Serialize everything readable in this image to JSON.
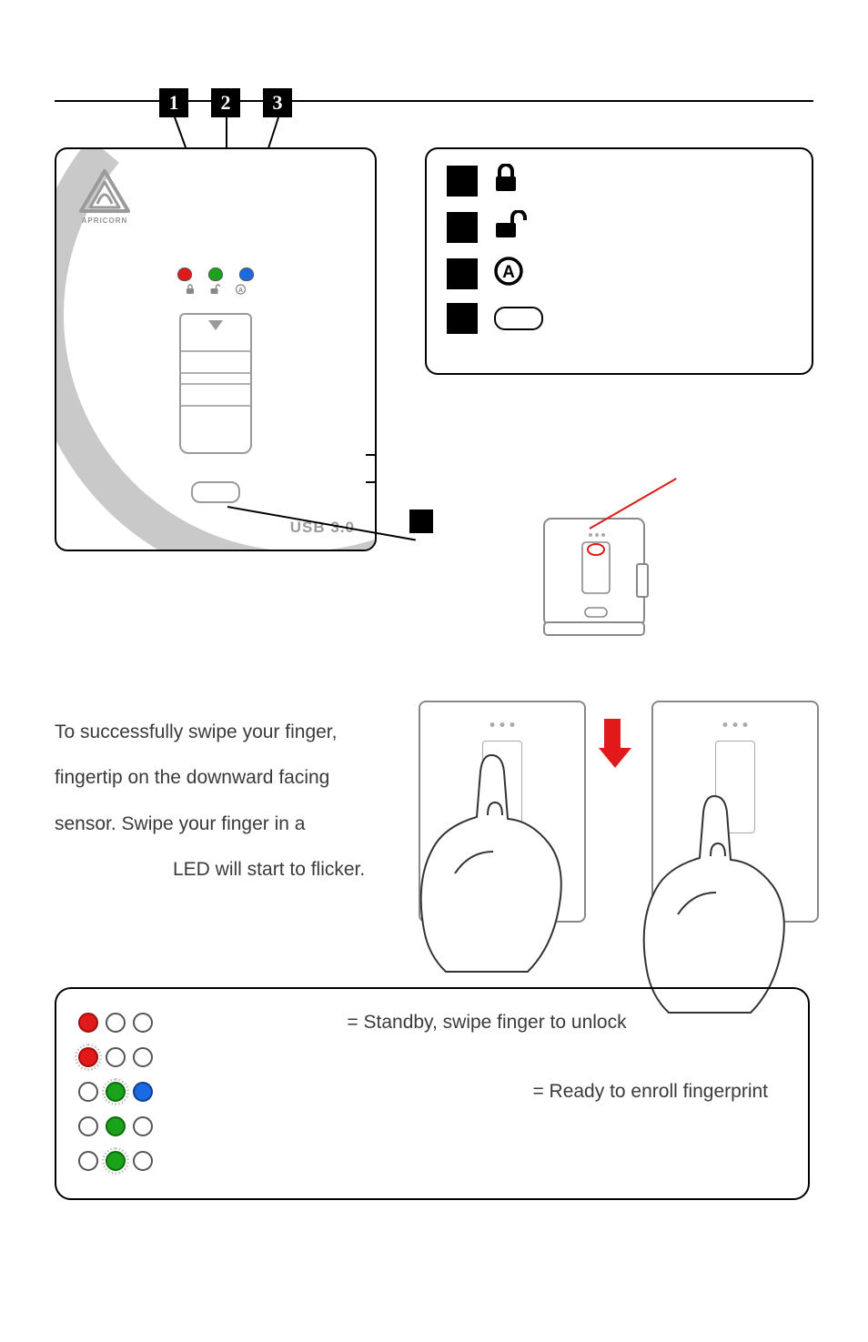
{
  "logo_text": "APRICORN",
  "usb_label": "USB 3.0",
  "callouts": [
    "1",
    "2",
    "3"
  ],
  "device_leds": [
    {
      "color": "red"
    },
    {
      "color": "green"
    },
    {
      "color": "blue"
    }
  ],
  "instructions": {
    "l1": "To successfully swipe your finger,",
    "l2": "fingertip on the downward facing",
    "l3": "sensor. Swipe your finger in a",
    "l4": "LED will start to flicker."
  },
  "led_states": [
    {
      "pattern": [
        {
          "filled": true,
          "glow": false,
          "color": "red"
        },
        {
          "filled": false
        },
        {
          "filled": false
        }
      ],
      "text": "= Standby, swipe finger to unlock",
      "align": "center"
    },
    {
      "pattern": [
        {
          "filled": true,
          "glow": true,
          "color": "red"
        },
        {
          "filled": false
        },
        {
          "filled": false
        }
      ],
      "text": "",
      "align": ""
    },
    {
      "pattern": [
        {
          "filled": false
        },
        {
          "filled": true,
          "glow": true,
          "color": "green"
        },
        {
          "filled": true,
          "glow": false,
          "color": "blue"
        }
      ],
      "text": "= Ready to enroll fingerprint",
      "align": "right"
    },
    {
      "pattern": [
        {
          "filled": false
        },
        {
          "filled": true,
          "glow": false,
          "color": "green"
        },
        {
          "filled": false
        }
      ],
      "text": "",
      "align": ""
    },
    {
      "pattern": [
        {
          "filled": false
        },
        {
          "filled": true,
          "glow": true,
          "color": "green"
        },
        {
          "filled": false
        }
      ],
      "text": "",
      "align": ""
    }
  ],
  "colors": {
    "red": "#e11919",
    "green": "#1aa31a",
    "blue": "#1a6ae1",
    "grey": "#9a9a9a",
    "text": "#3a3a3a"
  }
}
